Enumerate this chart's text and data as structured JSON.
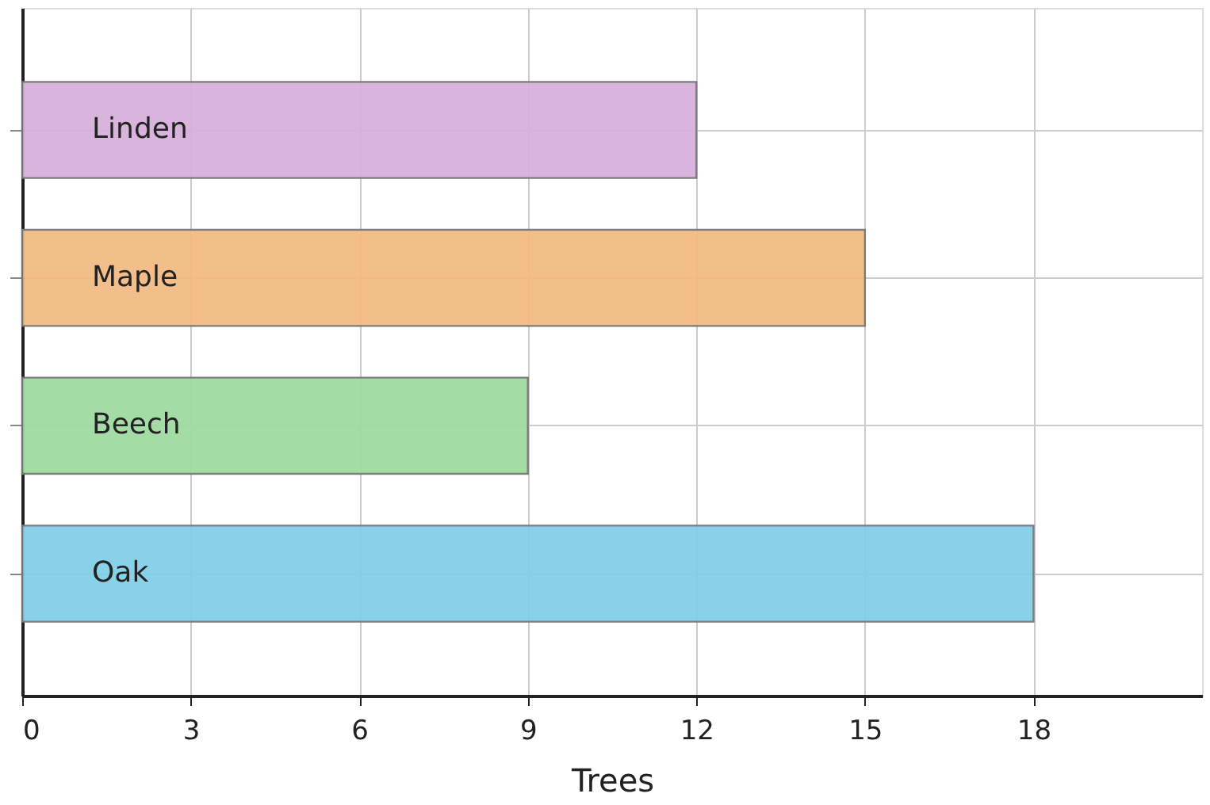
{
  "chart_data": {
    "type": "bar",
    "orientation": "horizontal",
    "xlabel": "Trees",
    "categories": [
      "Linden",
      "Maple",
      "Beech",
      "Oak"
    ],
    "values": [
      12,
      15,
      9,
      18
    ],
    "colors": [
      "#d7b1db",
      "#f2bb83",
      "#a0dba2",
      "#82cfe8"
    ],
    "xlim": [
      0,
      21
    ],
    "xticks": [
      0,
      3,
      6,
      9,
      12,
      15,
      18
    ],
    "grid": true,
    "legend": false
  }
}
